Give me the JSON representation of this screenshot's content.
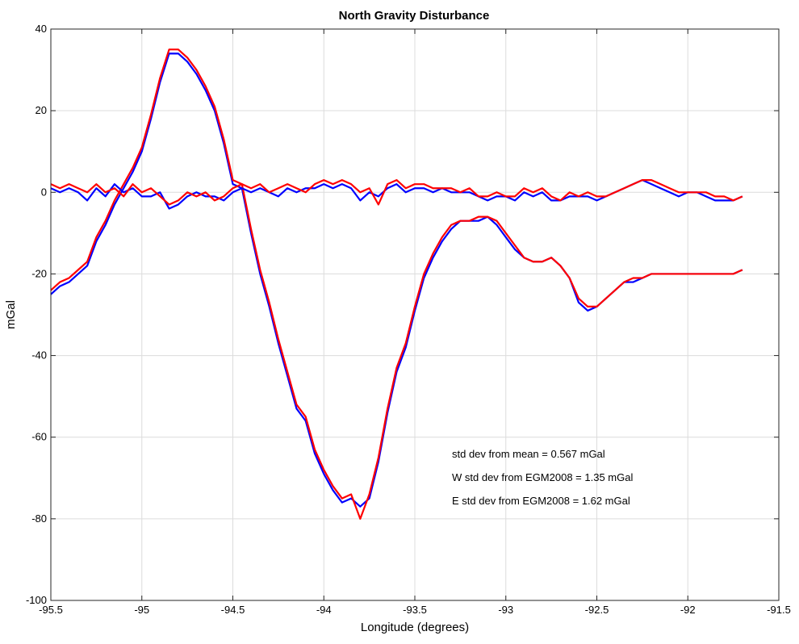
{
  "chart_data": {
    "type": "line",
    "title": "North Gravity Disturbance",
    "xlabel": "Longitude (degrees)",
    "ylabel": "mGal",
    "xlim": [
      -95.5,
      -91.5
    ],
    "ylim": [
      -100,
      40
    ],
    "xticks": [
      -95.5,
      -95,
      -94.5,
      -94,
      -93.5,
      -93,
      -92.5,
      -92,
      -91.5
    ],
    "xtick_labels": [
      "-95.5",
      "-95",
      "-94.5",
      "-94",
      "-93.5",
      "-93",
      "-92.5",
      "-92",
      "-91.5"
    ],
    "yticks": [
      -100,
      -80,
      -60,
      -40,
      -20,
      0,
      20,
      40
    ],
    "ytick_labels": [
      "-100",
      "-80",
      "-60",
      "-40",
      "-20",
      "0",
      "20",
      "40"
    ],
    "grid": true,
    "annotations": [
      "std dev from mean = 0.567 mGal",
      "W std dev from EGM2008 = 1.35 mGal",
      "E std dev from EGM2008 = 1.62 mGal"
    ],
    "series": [
      {
        "color": "#0000ff",
        "x": [
          -95.5,
          -95.45,
          -95.4,
          -95.35,
          -95.3,
          -95.25,
          -95.2,
          -95.15,
          -95.1,
          -95.05,
          -95.0,
          -94.95,
          -94.9,
          -94.85,
          -94.8,
          -94.75,
          -94.7,
          -94.65,
          -94.6,
          -94.55,
          -94.5,
          -94.45,
          -94.4,
          -94.35,
          -94.3,
          -94.25,
          -94.2,
          -94.15,
          -94.1,
          -94.05,
          -94.0,
          -93.95,
          -93.9,
          -93.85,
          -93.8,
          -93.75,
          -93.7,
          -93.65,
          -93.6,
          -93.55,
          -93.5,
          -93.45,
          -93.4,
          -93.35,
          -93.3,
          -93.25,
          -93.2,
          -93.15,
          -93.1,
          -93.05,
          -93.0,
          -92.95,
          -92.9,
          -92.85,
          -92.8,
          -92.75,
          -92.7,
          -92.65,
          -92.6,
          -92.55,
          -92.5,
          -92.45,
          -92.4,
          -92.35,
          -92.3,
          -92.25,
          -92.2,
          -92.15,
          -92.1,
          -92.05,
          -92.0,
          -91.95,
          -91.9,
          -91.85,
          -91.8,
          -91.75,
          -91.7
        ],
        "y": [
          -25,
          -23,
          -22,
          -20,
          -18,
          -12,
          -8,
          -3,
          1,
          5,
          10,
          18,
          27,
          34,
          34,
          32,
          29,
          25,
          20,
          12,
          2,
          1,
          -10,
          -20,
          -28,
          -37,
          -45,
          -53,
          -56,
          -64,
          -69,
          -73,
          -76,
          -75,
          -77,
          -75,
          -66,
          -54,
          -44,
          -38,
          -29,
          -21,
          -16,
          -12,
          -9,
          -7,
          -7,
          -7,
          -6,
          -8,
          -11,
          -14,
          -16,
          -17,
          -17,
          -16,
          -18,
          -21,
          -27,
          -29,
          -28,
          -26,
          -24,
          -22,
          -22,
          -21,
          -20,
          -20,
          -20,
          -20,
          -20,
          -20,
          -20,
          -20,
          -20,
          -20,
          -19
        ]
      },
      {
        "color": "#ff0000",
        "x": [
          -95.5,
          -95.45,
          -95.4,
          -95.35,
          -95.3,
          -95.25,
          -95.2,
          -95.15,
          -95.1,
          -95.05,
          -95.0,
          -94.95,
          -94.9,
          -94.85,
          -94.8,
          -94.75,
          -94.7,
          -94.65,
          -94.6,
          -94.55,
          -94.5,
          -94.45,
          -94.4,
          -94.35,
          -94.3,
          -94.25,
          -94.2,
          -94.15,
          -94.1,
          -94.05,
          -94.0,
          -93.95,
          -93.9,
          -93.85,
          -93.8,
          -93.75,
          -93.7,
          -93.65,
          -93.6,
          -93.55,
          -93.5,
          -93.45,
          -93.4,
          -93.35,
          -93.3,
          -93.25,
          -93.2,
          -93.15,
          -93.1,
          -93.05,
          -93.0,
          -92.95,
          -92.9,
          -92.85,
          -92.8,
          -92.75,
          -92.7,
          -92.65,
          -92.6,
          -92.55,
          -92.5,
          -92.45,
          -92.4,
          -92.35,
          -92.3,
          -92.25,
          -92.2,
          -92.15,
          -92.1,
          -92.05,
          -92.0,
          -91.95,
          -91.9,
          -91.85,
          -91.8,
          -91.75,
          -91.7
        ],
        "y": [
          -24,
          -22,
          -21,
          -19,
          -17,
          -11,
          -7,
          -2,
          2,
          6,
          11,
          19,
          28,
          35,
          35,
          33,
          30,
          26,
          21,
          13,
          3,
          2,
          -9,
          -19,
          -27,
          -36,
          -44,
          -52,
          -55,
          -63,
          -68,
          -72,
          -75,
          -74,
          -80,
          -74,
          -65,
          -53,
          -43,
          -37,
          -28,
          -20,
          -15,
          -11,
          -8,
          -7,
          -7,
          -6,
          -6,
          -7,
          -10,
          -13,
          -16,
          -17,
          -17,
          -16,
          -18,
          -21,
          -26,
          -28,
          -28,
          -26,
          -24,
          -22,
          -21,
          -21,
          -20,
          -20,
          -20,
          -20,
          -20,
          -20,
          -20,
          -20,
          -20,
          -20,
          -19
        ]
      },
      {
        "color": "#0000ff",
        "x": [
          -95.5,
          -95.45,
          -95.4,
          -95.35,
          -95.3,
          -95.25,
          -95.2,
          -95.15,
          -95.1,
          -95.05,
          -95.0,
          -94.95,
          -94.9,
          -94.85,
          -94.8,
          -94.75,
          -94.7,
          -94.65,
          -94.6,
          -94.55,
          -94.5,
          -94.45,
          -94.4,
          -94.35,
          -94.3,
          -94.25,
          -94.2,
          -94.15,
          -94.1,
          -94.05,
          -94.0,
          -93.95,
          -93.9,
          -93.85,
          -93.8,
          -93.75,
          -93.7,
          -93.65,
          -93.6,
          -93.55,
          -93.5,
          -93.45,
          -93.4,
          -93.35,
          -93.3,
          -93.25,
          -93.2,
          -93.15,
          -93.1,
          -93.05,
          -93.0,
          -92.95,
          -92.9,
          -92.85,
          -92.8,
          -92.75,
          -92.7,
          -92.65,
          -92.6,
          -92.55,
          -92.5,
          -92.45,
          -92.4,
          -92.35,
          -92.3,
          -92.25,
          -92.2,
          -92.15,
          -92.1,
          -92.05,
          -92.0,
          -91.95,
          -91.9,
          -91.85,
          -91.8,
          -91.75,
          -91.7
        ],
        "y": [
          1,
          0,
          1,
          0,
          -2,
          1,
          -1,
          2,
          0,
          1,
          -1,
          -1,
          0,
          -4,
          -3,
          -1,
          0,
          -1,
          -1,
          -2,
          0,
          1,
          0,
          1,
          0,
          -1,
          1,
          0,
          1,
          1,
          2,
          1,
          2,
          1,
          -2,
          0,
          -1,
          1,
          2,
          0,
          1,
          1,
          0,
          1,
          0,
          0,
          0,
          -1,
          -2,
          -1,
          -1,
          -2,
          0,
          -1,
          0,
          -2,
          -2,
          -1,
          -1,
          -1,
          -2,
          -1,
          0,
          1,
          2,
          3,
          2,
          1,
          0,
          -1,
          0,
          0,
          -1,
          -2,
          -2,
          -2,
          -1
        ]
      },
      {
        "color": "#ff0000",
        "x": [
          -95.5,
          -95.45,
          -95.4,
          -95.35,
          -95.3,
          -95.25,
          -95.2,
          -95.15,
          -95.1,
          -95.05,
          -95.0,
          -94.95,
          -94.9,
          -94.85,
          -94.8,
          -94.75,
          -94.7,
          -94.65,
          -94.6,
          -94.55,
          -94.5,
          -94.45,
          -94.4,
          -94.35,
          -94.3,
          -94.25,
          -94.2,
          -94.15,
          -94.1,
          -94.05,
          -94.0,
          -93.95,
          -93.9,
          -93.85,
          -93.8,
          -93.75,
          -93.7,
          -93.65,
          -93.6,
          -93.55,
          -93.5,
          -93.45,
          -93.4,
          -93.35,
          -93.3,
          -93.25,
          -93.2,
          -93.15,
          -93.1,
          -93.05,
          -93.0,
          -92.95,
          -92.9,
          -92.85,
          -92.8,
          -92.75,
          -92.7,
          -92.65,
          -92.6,
          -92.55,
          -92.5,
          -92.45,
          -92.4,
          -92.35,
          -92.3,
          -92.25,
          -92.2,
          -92.15,
          -92.1,
          -92.05,
          -92.0,
          -91.95,
          -91.9,
          -91.85,
          -91.8,
          -91.75,
          -91.7
        ],
        "y": [
          2,
          1,
          2,
          1,
          0,
          2,
          0,
          1,
          -1,
          2,
          0,
          1,
          -1,
          -3,
          -2,
          0,
          -1,
          0,
          -2,
          -1,
          1,
          2,
          1,
          2,
          0,
          1,
          2,
          1,
          0,
          2,
          3,
          2,
          3,
          2,
          0,
          1,
          -3,
          2,
          3,
          1,
          2,
          2,
          1,
          1,
          1,
          0,
          1,
          -1,
          -1,
          0,
          -1,
          -1,
          1,
          0,
          1,
          -1,
          -2,
          0,
          -1,
          0,
          -1,
          -1,
          0,
          1,
          2,
          3,
          3,
          2,
          1,
          0,
          0,
          0,
          0,
          -1,
          -1,
          -2,
          -1
        ]
      }
    ]
  }
}
